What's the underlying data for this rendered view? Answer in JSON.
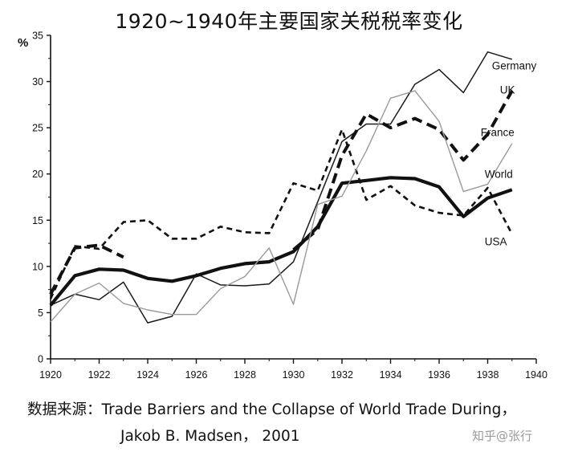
{
  "title": "1920~1940年主要国家关税税率变化",
  "source_line1": "数据来源：Trade Barriers and the Collapse of World Trade During，",
  "source_line2": "Jakob B. Madsen， 2001",
  "watermark": "知乎@张行",
  "chart_data": {
    "type": "line",
    "title": "1920~1940年主要国家关税税率变化",
    "ylabel": "%",
    "xlabel": "",
    "xlim": [
      1920,
      1940
    ],
    "ylim": [
      0,
      35
    ],
    "x_ticks": [
      "1920",
      "1922",
      "1924",
      "1926",
      "1928",
      "1930",
      "1932",
      "1934",
      "1936",
      "1938",
      "1940"
    ],
    "y_ticks": [
      "0",
      "5",
      "10",
      "15",
      "20",
      "25",
      "30",
      "35"
    ],
    "grid": false,
    "legend": "inline labels at right end of lines",
    "x": [
      1920,
      1921,
      1922,
      1923,
      1924,
      1925,
      1926,
      1927,
      1928,
      1929,
      1930,
      1931,
      1932,
      1933,
      1934,
      1935,
      1936,
      1937,
      1938,
      1939
    ],
    "series": [
      {
        "name": "Germany",
        "style": "thin-solid",
        "color": "#111111",
        "values": [
          5.8,
          7.0,
          6.4,
          8.3,
          3.9,
          4.6,
          9.2,
          8.0,
          7.9,
          8.1,
          10.5,
          17.0,
          23.5,
          25.4,
          25.4,
          29.7,
          31.3,
          28.8,
          33.2,
          32.4
        ]
      },
      {
        "name": "UK",
        "style": "heavy-dash",
        "color": "#111111",
        "values": [
          7.0,
          12.0,
          12.3,
          11.0,
          null,
          null,
          null,
          null,
          null,
          null,
          11.8,
          14.0,
          22.0,
          26.5,
          25.0,
          26.0,
          24.8,
          21.5,
          24.3,
          29.0
        ]
      },
      {
        "name": "France",
        "style": "dashed",
        "color": "#111111",
        "values": [
          6.5,
          12.2,
          11.9,
          14.8,
          15.0,
          13.0,
          13.0,
          14.3,
          13.7,
          13.6,
          19.0,
          18.2,
          24.8,
          17.2,
          18.7,
          16.6,
          15.8,
          15.5,
          18.5,
          13.5
        ]
      },
      {
        "name": "World",
        "style": "thick-solid",
        "color": "#111111",
        "values": [
          5.8,
          9.0,
          9.7,
          9.6,
          8.7,
          8.4,
          9.0,
          9.8,
          10.3,
          10.5,
          11.6,
          14.3,
          19.0,
          19.3,
          19.6,
          19.5,
          18.6,
          15.4,
          17.4,
          18.3
        ]
      },
      {
        "name": "USA",
        "style": "thin-gray",
        "color": "#9a9a9a",
        "values": [
          4.0,
          7.0,
          8.2,
          6.0,
          5.3,
          4.8,
          4.8,
          7.6,
          8.9,
          12.0,
          5.9,
          16.7,
          17.6,
          22.5,
          28.2,
          29.0,
          25.7,
          18.1,
          18.9,
          23.3
        ]
      }
    ],
    "label_texts": {
      "Germany": "Germany",
      "UK": "UK",
      "France": "France",
      "World": "World",
      "USA": "USA"
    }
  }
}
